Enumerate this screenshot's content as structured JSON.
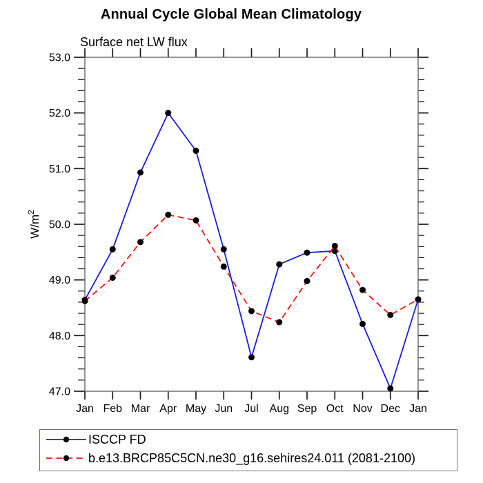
{
  "page": {
    "background": "#ffffff"
  },
  "chart_data": {
    "type": "line",
    "title": "Annual Cycle Global Mean Climatology",
    "subtitle": "Surface net LW flux",
    "ylabel": "W/m²",
    "xlabel": "",
    "categories": [
      "Jan",
      "Feb",
      "Mar",
      "Apr",
      "May",
      "Jun",
      "Jul",
      "Aug",
      "Sep",
      "Oct",
      "Nov",
      "Dec",
      "Jan"
    ],
    "ylim": [
      47.0,
      53.0
    ],
    "ytick_interval": 1.0,
    "y_minor_interval": 0.2,
    "ytick_labels": [
      "47.0",
      "48.0",
      "49.0",
      "50.0",
      "51.0",
      "52.0",
      "53.0"
    ],
    "grid": false,
    "legend_position": "below-plot-left",
    "axis_color": "#5a5a5a",
    "tick_color": "#1a1a1a",
    "marker_color": "#000000",
    "series": [
      {
        "name": "ISCCP FD",
        "color": "#1a1ae6",
        "line_style": "solid",
        "marker": "filled-black-circle",
        "values": [
          48.64,
          49.55,
          50.93,
          52.0,
          51.32,
          49.55,
          47.61,
          49.28,
          49.49,
          49.52,
          48.21,
          47.05,
          48.65
        ]
      },
      {
        "name": "b.e13.BRCP85C5CN.ne30_g16.sehires24.011 (2081-2100)",
        "color": "#f50f0f",
        "line_style": "dashed",
        "marker": "filled-black-circle",
        "values": [
          48.62,
          49.04,
          49.68,
          50.17,
          50.07,
          49.24,
          48.44,
          48.24,
          48.98,
          49.61,
          48.82,
          48.37,
          48.65
        ]
      }
    ]
  }
}
